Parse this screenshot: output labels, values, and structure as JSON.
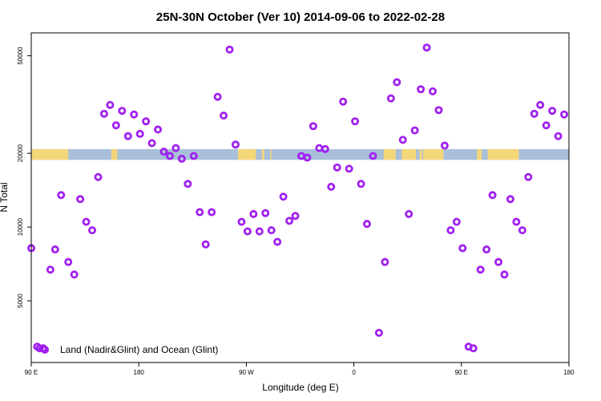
{
  "chart_data": {
    "type": "scatter",
    "title": "25N-30N October (Ver 10)   2014-09-06 to 2022-02-28",
    "xlabel": "Longitude (deg E)",
    "ylabel": "N Total",
    "xlim": [
      90,
      540
    ],
    "ylim": [
      2800,
      62000
    ],
    "yscale": "log",
    "x_ticks": [
      {
        "value": 90,
        "label": "90 E"
      },
      {
        "value": 180,
        "label": "180"
      },
      {
        "value": 270,
        "label": "90 W"
      },
      {
        "value": 360,
        "label": "0"
      },
      {
        "value": 450,
        "label": "90 E"
      },
      {
        "value": 540,
        "label": "180"
      }
    ],
    "y_ticks": [
      {
        "value": 5000,
        "label": "5000"
      },
      {
        "value": 10000,
        "label": "10000"
      },
      {
        "value": 20000,
        "label": "20000"
      },
      {
        "value": 50000,
        "label": "50000"
      }
    ],
    "legend": {
      "position": "bottom-left",
      "label": "Land (Nadir&Glint) and Ocean (Glint)",
      "color": "#a020f0"
    },
    "surface_band": {
      "y_range": [
        18800,
        20800
      ],
      "land_color": "#f5d77a",
      "ocean_color": "#a9bfd9",
      "land_segments": [
        [
          90,
          121
        ],
        [
          157,
          160
        ],
        [
          160,
          162
        ],
        [
          263,
          278
        ],
        [
          283,
          285
        ],
        [
          290,
          291
        ],
        [
          385,
          395
        ],
        [
          400,
          412
        ],
        [
          415,
          417
        ],
        [
          418,
          435
        ],
        [
          463,
          467
        ],
        [
          472,
          498
        ]
      ]
    },
    "series": [
      {
        "color": "#a020f0",
        "points": [
          [
            90,
            8200
          ],
          [
            95,
            3250
          ],
          [
            97,
            3200
          ],
          [
            100,
            3200
          ],
          [
            106,
            6700
          ],
          [
            110,
            8100
          ],
          [
            115,
            13500
          ],
          [
            121,
            7200
          ],
          [
            126,
            6400
          ],
          [
            131,
            13000
          ],
          [
            136,
            10500
          ],
          [
            141,
            9700
          ],
          [
            146,
            16000
          ],
          [
            151,
            29000
          ],
          [
            156,
            31500
          ],
          [
            161,
            26000
          ],
          [
            166,
            29800
          ],
          [
            171,
            23500
          ],
          [
            176,
            28800
          ],
          [
            181,
            24000
          ],
          [
            186,
            27000
          ],
          [
            191,
            22000
          ],
          [
            196,
            25000
          ],
          [
            201,
            20300
          ],
          [
            206,
            19500
          ],
          [
            211,
            21000
          ],
          [
            216,
            19000
          ],
          [
            221,
            15000
          ],
          [
            226,
            19500
          ],
          [
            231,
            11500
          ],
          [
            236,
            8500
          ],
          [
            241,
            11500
          ],
          [
            246,
            34000
          ],
          [
            251,
            28500
          ],
          [
            256,
            53000
          ],
          [
            261,
            21700
          ],
          [
            266,
            10500
          ],
          [
            271,
            9600
          ],
          [
            276,
            11300
          ],
          [
            281,
            9600
          ],
          [
            286,
            11400
          ],
          [
            291,
            9700
          ],
          [
            296,
            8700
          ],
          [
            301,
            13300
          ],
          [
            306,
            10600
          ],
          [
            311,
            11100
          ],
          [
            316,
            19500
          ],
          [
            321,
            19200
          ],
          [
            326,
            25800
          ],
          [
            331,
            21000
          ],
          [
            336,
            20800
          ],
          [
            341,
            14600
          ],
          [
            346,
            17500
          ],
          [
            351,
            32500
          ],
          [
            356,
            17300
          ],
          [
            361,
            27000
          ],
          [
            366,
            15000
          ],
          [
            371,
            10300
          ],
          [
            376,
            19500
          ],
          [
            381,
            3700
          ],
          [
            386,
            7200
          ],
          [
            391,
            33500
          ],
          [
            396,
            39000
          ],
          [
            401,
            22700
          ],
          [
            406,
            11300
          ],
          [
            411,
            24800
          ],
          [
            416,
            36500
          ],
          [
            421,
            54000
          ],
          [
            426,
            35800
          ],
          [
            431,
            30000
          ],
          [
            436,
            21500
          ],
          [
            441,
            9700
          ],
          [
            446,
            10500
          ],
          [
            451,
            8200
          ],
          [
            456,
            3250
          ],
          [
            460,
            3200
          ],
          [
            466,
            6700
          ],
          [
            471,
            8100
          ],
          [
            476,
            13500
          ],
          [
            481,
            7200
          ],
          [
            486,
            6400
          ],
          [
            491,
            13000
          ],
          [
            496,
            10500
          ],
          [
            501,
            9700
          ],
          [
            506,
            16000
          ],
          [
            511,
            29000
          ],
          [
            516,
            31500
          ],
          [
            521,
            26000
          ],
          [
            526,
            29800
          ],
          [
            531,
            23500
          ],
          [
            536,
            28800
          ]
        ]
      }
    ]
  }
}
